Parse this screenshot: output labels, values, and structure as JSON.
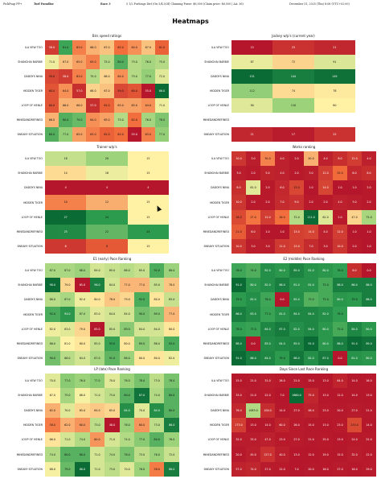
{
  "header": {
    "app": "PickPoap PP+",
    "venue": "Turf Paradise",
    "race": "Race 3",
    "race_info": "5 1/2 Furlongs Dirt (On 5/4,0/3f) Claiming Purse: $6,900 (Claim price: $6,500 | AA: 36)",
    "timestamp": "December 31, 2025 (Thu) 8:06 (UTC+02:00)"
  },
  "title": "Heatmaps",
  "horses": [
    "ILA VEW TOO",
    "SHANGHAI BARBIE",
    "DADDYS NINA",
    "HIDDEN TIGER",
    "LOOP OF HENLE",
    "MINEDANDREFINED",
    "SNEAKY SITUATION"
  ],
  "panels": [
    {
      "title": "Bris speed ratings",
      "cols": 9,
      "values": [
        [
          "58.0",
          "81.0",
          "63.0",
          "66.0",
          "67.0",
          "62.0",
          "64.0",
          "67.0",
          "61.0"
        ],
        [
          "71.0",
          "67.0",
          "65.0",
          "63.0",
          "75.0",
          "80.0",
          "75.0",
          "76.0",
          "75.0"
        ],
        [
          "59.0",
          "58.0",
          "63.0",
          "75.0",
          "68.0",
          "64.0",
          "75.0",
          "77.0",
          "72.0"
        ],
        [
          "60.0",
          "64.0",
          "57.0",
          "68.0",
          "67.0",
          "59.0",
          "60.0",
          "55.0",
          "86.0"
        ],
        [
          "60.0",
          "66.0",
          "66.0",
          "57.0",
          "61.0",
          "65.0",
          "65.0",
          "64.0",
          "71.0"
        ],
        [
          "66.0",
          "80.0",
          "79.0",
          "64.0",
          "65.0",
          "75.0",
          "62.0",
          "76.0",
          "78.0"
        ],
        [
          "80.0",
          "77.0",
          "65.0",
          "63.0",
          "61.0",
          "62.0",
          "55.0",
          "63.0",
          "77.0"
        ]
      ]
    },
    {
      "title": "Jockey w/p's (current year)",
      "cols": 3,
      "values": [
        [
          "15",
          "25",
          "21"
        ],
        [
          "87",
          "72",
          "91"
        ],
        [
          "151",
          "144",
          "149"
        ],
        [
          "112",
          "74",
          "78"
        ],
        [
          "90",
          "110",
          "80"
        ],
        [
          "",
          "",
          ""
        ],
        [
          "21",
          "17",
          "25"
        ]
      ]
    },
    {
      "title": "Trainer w/p's",
      "cols": 3,
      "values": [
        [
          "18",
          "20",
          "15"
        ],
        [
          "14",
          "16",
          "15"
        ],
        [
          "4",
          "4",
          "4"
        ],
        [
          "10",
          "12",
          "15"
        ],
        [
          "27",
          "24",
          "15"
        ],
        [
          "25",
          "22",
          "24"
        ],
        [
          "6",
          "8",
          "15"
        ]
      ]
    },
    {
      "title": "Works ranking",
      "cols": 10,
      "values": [
        [
          "10.0",
          "3.0",
          "30.0",
          "4.0",
          "2.0",
          "40.0",
          "4.0",
          "8.0",
          "12.0",
          "4.0"
        ],
        [
          "3.0",
          "2.0",
          "5.0",
          "4.0",
          "2.0",
          "3.0",
          "12.0",
          "25.0",
          "6.0",
          "8.0"
        ],
        [
          "8.0",
          "61.0",
          "2.0",
          "6.0",
          "15.0",
          "1.0",
          "14.0",
          "1.0",
          "1.0",
          "2.0"
        ],
        [
          "10.0",
          "2.0",
          "2.0",
          "7.0",
          "9.0",
          "2.0",
          "2.0",
          "4.0",
          "3.0",
          "2.0"
        ],
        [
          "16.0",
          "27.0",
          "12.0",
          "26.0",
          "72.0",
          "111.0",
          "62.0",
          "2.0",
          "47.0",
          "75.0"
        ],
        [
          "21.0",
          "6.0",
          "1.0",
          "1.0",
          "13.0",
          "14.0",
          "4.0",
          "12.0",
          "1.0",
          "1.0"
        ],
        [
          "10.0",
          "3.0",
          "3.0",
          "11.0",
          "13.0",
          "7.0",
          "3.0",
          "10.0",
          "2.0",
          "1.0"
        ]
      ]
    },
    {
      "title": "E1 (early) Pace Ranking",
      "cols": 9,
      "values": [
        [
          "87.0",
          "87.0",
          "88.0",
          "84.0",
          "85.0",
          "86.0",
          "85.0",
          "92.0",
          "88.0"
        ],
        [
          "98.0",
          "79.0",
          "65.0",
          "96.0",
          "84.0",
          "77.0",
          "77.0",
          "85.0",
          "78.0"
        ],
        [
          "86.0",
          "87.0",
          "82.0",
          "80.0",
          "78.0",
          "79.0",
          "92.0",
          "80.0",
          "85.0"
        ],
        [
          "92.0",
          "94.0",
          "87.0",
          "83.0",
          "84.0",
          "84.0",
          "90.0",
          "89.0",
          "77.0"
        ],
        [
          "82.0",
          "83.0",
          "79.0",
          "65.0",
          "85.0",
          "89.0",
          "84.0",
          "84.0",
          "80.0"
        ],
        [
          "86.0",
          "81.0",
          "80.0",
          "85.0",
          "93.0",
          "80.0",
          "89.0",
          "86.0",
          "92.0"
        ],
        [
          "90.0",
          "86.0",
          "84.0",
          "87.0",
          "91.0",
          "88.0",
          "80.0",
          "80.0",
          "82.0"
        ]
      ]
    },
    {
      "title": "E2 (middle) Pace Ranking",
      "cols": 10,
      "values": [
        [
          "76.0",
          "74.0",
          "82.0",
          "80.0",
          "85.0",
          "81.0",
          "80.0",
          "78.0",
          "6.0",
          "0.0"
        ],
        [
          "91.0",
          "80.0",
          "82.0",
          "86.0",
          "81.0",
          "81.0",
          "75.0",
          "86.0",
          "86.0",
          "86.0"
        ],
        [
          "79.0",
          "82.0",
          "76.0",
          "0.0",
          "82.0",
          "73.0",
          "75.0",
          "80.0",
          "79.0",
          "86.0"
        ],
        [
          "86.0",
          "83.0",
          "77.0",
          "81.0",
          "84.0",
          "84.0",
          "82.0",
          "78.0",
          "",
          ""
        ],
        [
          "78.0",
          "77.0",
          "84.0",
          "87.0",
          "82.0",
          "84.0",
          "80.0",
          "75.0",
          "84.0",
          "80.0"
        ],
        [
          "88.0",
          "0.0",
          "83.0",
          "84.0",
          "85.0",
          "91.0",
          "80.0",
          "86.0",
          "91.0",
          "89.0"
        ],
        [
          "91.0",
          "86.0",
          "84.0",
          "79.0",
          "88.0",
          "82.0",
          "87.0",
          "0.0",
          "81.0",
          "80.0"
        ]
      ]
    },
    {
      "title": "LP (late) Pace Ranking",
      "cols": 9,
      "values": [
        [
          "70.0",
          "77.0",
          "76.0",
          "77.0",
          "70.0",
          "76.0",
          "78.0",
          "73.0",
          "78.0"
        ],
        [
          "67.0",
          "75.0",
          "68.0",
          "71.0",
          "73.0",
          "80.0",
          "87.0",
          "74.0",
          "80.0"
        ],
        [
          "62.0",
          "70.0",
          "65.0",
          "64.0",
          "65.0",
          "84.0",
          "70.0",
          "84.0",
          "80.0"
        ],
        [
          "58.0",
          "62.0",
          "60.0",
          "73.0",
          "48.0",
          "76.0",
          "60.0",
          "73.0",
          "86.0"
        ],
        [
          "66.0",
          "71.0",
          "74.0",
          "60.0",
          "71.0",
          "74.0",
          "77.0",
          "80.0",
          "76.0"
        ],
        [
          "74.0",
          "80.0",
          "80.0",
          "71.0",
          "74.0",
          "78.0",
          "73.0",
          "76.0",
          "72.0"
        ],
        [
          "68.0",
          "79.0",
          "88.0",
          "71.0",
          "73.0",
          "70.0",
          "76.0",
          "58.0",
          "86.0"
        ]
      ]
    },
    {
      "title": "Days Since Last Race Ranking",
      "cols": 10,
      "values": [
        [
          "15.0",
          "21.0",
          "31.0",
          "26.0",
          "21.0",
          "15.0",
          "13.0",
          "64.0",
          "14.0",
          "16.0"
        ],
        [
          "33.0",
          "21.0",
          "22.0",
          "7.0",
          "1660.0",
          "75.0",
          "13.0",
          "12.0",
          "14.0",
          "13.0"
        ],
        [
          "76.0",
          "1083.0",
          "100.0",
          "14.0",
          "27.0",
          "48.0",
          "23.0",
          "20.0",
          "27.0",
          "21.0"
        ],
        [
          "173.0",
          "13.0",
          "14.0",
          "60.0",
          "26.0",
          "15.0",
          "13.0",
          "23.0",
          "233.0",
          "14.0"
        ],
        [
          "32.0",
          "33.0",
          "47.0",
          "23.0",
          "27.0",
          "21.0",
          "25.0",
          "13.0",
          "24.0",
          "22.0"
        ],
        [
          "20.0",
          "45.0",
          "127.0",
          "40.0",
          "13.0",
          "12.0",
          "19.0",
          "15.0",
          "32.0",
          "22.0"
        ],
        [
          "57.0",
          "74.0",
          "27.0",
          "22.0",
          "7.0",
          "20.0",
          "16.0",
          "27.0",
          "16.0",
          "29.0"
        ]
      ]
    }
  ],
  "colors": {
    "red": "#b5162b",
    "orange": "#f26b3a",
    "yellow": "#fff3a6",
    "lightgreen": "#9bd27a",
    "green": "#2f9e50",
    "darkgreen": "#0b6b35"
  }
}
